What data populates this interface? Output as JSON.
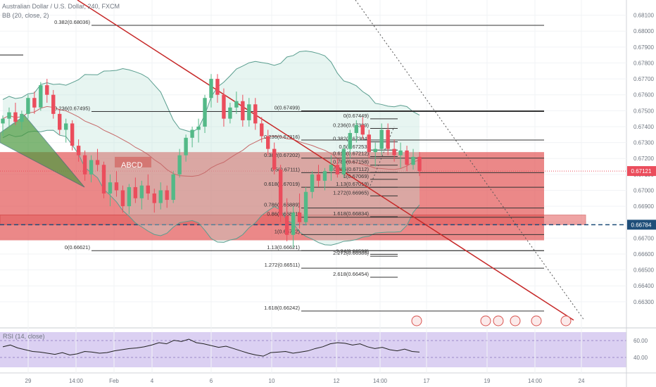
{
  "chart_data": {
    "type": "candlestick",
    "symbol_label": "Australian Dollar / U.S. Dollar, 240, FXCM",
    "indicator_label": "BB (20, close, 2)",
    "rsi_label": "RSI (14, close)",
    "ylim": [
      0.6618,
      0.6816
    ],
    "price_ticks": [
      "0.68100",
      "0.68000",
      "0.67900",
      "0.67800",
      "0.67700",
      "0.67600",
      "0.67500",
      "0.67400",
      "0.67300",
      "0.67200",
      "0.67100",
      "0.67000",
      "0.66900",
      "0.66800",
      "0.66700",
      "0.66600",
      "0.66500",
      "0.66400",
      "0.66300"
    ],
    "current_price": "0.67121",
    "marked_price": "0.66784",
    "rsi_ticks": [
      "60.00",
      "40.00"
    ],
    "time_labels": [
      "29",
      "14:00",
      "Feb",
      "4",
      "6",
      "10",
      "12",
      "14:00",
      "17",
      "19",
      "14:00",
      "24"
    ],
    "pattern_label": "ABCD",
    "fib_left": [
      {
        "label": "0.382(0.68036)",
        "price": 0.68036
      },
      {
        "label": "0.236(0.67495)",
        "price": 0.67495
      },
      {
        "label": "0(0.66621)",
        "price": 0.66621
      }
    ],
    "fib_mid": [
      {
        "label": "0(0.67499)",
        "price": 0.67499
      },
      {
        "label": "0.236(0.67316)",
        "price": 0.67316
      },
      {
        "label": "0.382(0.67202)",
        "price": 0.67202
      },
      {
        "label": "0.5(0.67111)",
        "price": 0.67111
      },
      {
        "label": "0.618(0.67019)",
        "price": 0.67019
      },
      {
        "label": "0.786(0.66889)",
        "price": 0.66889
      },
      {
        "label": "0.86(0.66831)",
        "price": 0.66831
      },
      {
        "label": "1(0.66722)",
        "price": 0.66722
      },
      {
        "label": "1.13(0.66621)",
        "price": 0.66621
      },
      {
        "label": "1.272(0.66511)",
        "price": 0.66511
      },
      {
        "label": "1.618(0.66242)",
        "price": 0.66242
      }
    ],
    "fib_right": [
      {
        "label": "0(0.67449)",
        "price": 0.67449
      },
      {
        "label": "0.236(0.67389)",
        "price": 0.67389
      },
      {
        "label": "0.382(0.67304)",
        "price": 0.67304
      },
      {
        "label": "0.5(0.67253)",
        "price": 0.67253
      },
      {
        "label": "0.618(0.67212)",
        "price": 0.67212
      },
      {
        "label": "0.786(0.67158)",
        "price": 0.67158
      },
      {
        "label": "0.886(0.67112)",
        "price": 0.67112
      },
      {
        "label": "1(0.67069)",
        "price": 0.67069
      },
      {
        "label": "1.13(0.67019)",
        "price": 0.67019
      },
      {
        "label": "1.272(0.66965)",
        "price": 0.66965
      },
      {
        "label": "1.618(0.66834)",
        "price": 0.66834
      },
      {
        "label": "2.24(0.66598)",
        "price": 0.66598
      },
      {
        "label": "2.272(0.66586)",
        "price": 0.66586
      },
      {
        "label": "2.618(0.66454)",
        "price": 0.66454
      }
    ],
    "candles": [
      [
        0.6742,
        0.6747,
        0.6734,
        0.6745
      ],
      [
        0.6745,
        0.6752,
        0.674,
        0.6749
      ],
      [
        0.6749,
        0.6755,
        0.6741,
        0.6743
      ],
      [
        0.6743,
        0.675,
        0.6738,
        0.6748
      ],
      [
        0.6748,
        0.676,
        0.6745,
        0.6758
      ],
      [
        0.6758,
        0.6762,
        0.6748,
        0.6752
      ],
      [
        0.6752,
        0.6768,
        0.675,
        0.6766
      ],
      [
        0.6766,
        0.677,
        0.6755,
        0.676
      ],
      [
        0.676,
        0.6763,
        0.6745,
        0.6748
      ],
      [
        0.6748,
        0.6751,
        0.6735,
        0.6738
      ],
      [
        0.6738,
        0.6745,
        0.673,
        0.6742
      ],
      [
        0.6742,
        0.6744,
        0.6725,
        0.6728
      ],
      [
        0.6728,
        0.6732,
        0.6718,
        0.6722
      ],
      [
        0.6722,
        0.6725,
        0.6706,
        0.671
      ],
      [
        0.671,
        0.6722,
        0.6705,
        0.6719
      ],
      [
        0.6719,
        0.6726,
        0.6712,
        0.6716
      ],
      [
        0.6716,
        0.6718,
        0.6695,
        0.6698
      ],
      [
        0.6698,
        0.671,
        0.669,
        0.6705
      ],
      [
        0.6705,
        0.6712,
        0.6696,
        0.67
      ],
      [
        0.67,
        0.6703,
        0.6686,
        0.669
      ],
      [
        0.669,
        0.6704,
        0.6685,
        0.6702
      ],
      [
        0.6702,
        0.6708,
        0.6692,
        0.6695
      ],
      [
        0.6695,
        0.6706,
        0.6688,
        0.6703
      ],
      [
        0.6703,
        0.671,
        0.6694,
        0.6698
      ],
      [
        0.6698,
        0.6701,
        0.6686,
        0.6692
      ],
      [
        0.6692,
        0.6705,
        0.6688,
        0.67
      ],
      [
        0.67,
        0.6703,
        0.6689,
        0.6694
      ],
      [
        0.6694,
        0.6712,
        0.6692,
        0.671
      ],
      [
        0.671,
        0.6726,
        0.6708,
        0.6722
      ],
      [
        0.6722,
        0.6735,
        0.6718,
        0.6733
      ],
      [
        0.6733,
        0.674,
        0.6727,
        0.6738
      ],
      [
        0.6738,
        0.6745,
        0.673,
        0.674
      ],
      [
        0.674,
        0.676,
        0.6736,
        0.6758
      ],
      [
        0.6758,
        0.6773,
        0.6752,
        0.677
      ],
      [
        0.677,
        0.6773,
        0.6755,
        0.676
      ],
      [
        0.676,
        0.6764,
        0.674,
        0.6745
      ],
      [
        0.6745,
        0.6755,
        0.6742,
        0.6752
      ],
      [
        0.6752,
        0.6762,
        0.6748,
        0.6756
      ],
      [
        0.6756,
        0.676,
        0.674,
        0.6744
      ],
      [
        0.6744,
        0.6758,
        0.674,
        0.6754
      ],
      [
        0.6754,
        0.6758,
        0.6738,
        0.6742
      ],
      [
        0.6742,
        0.6746,
        0.673,
        0.6734
      ],
      [
        0.6734,
        0.6738,
        0.6722,
        0.6726
      ],
      [
        0.6726,
        0.673,
        0.671,
        0.6713
      ],
      [
        0.6713,
        0.6716,
        0.668,
        0.6684
      ],
      [
        0.6684,
        0.6695,
        0.6668,
        0.6672
      ],
      [
        0.6672,
        0.669,
        0.6664,
        0.6686
      ],
      [
        0.6686,
        0.6698,
        0.6676,
        0.668
      ],
      [
        0.668,
        0.6702,
        0.6678,
        0.6699
      ],
      [
        0.6699,
        0.6712,
        0.6695,
        0.671
      ],
      [
        0.671,
        0.6716,
        0.6702,
        0.6706
      ],
      [
        0.6706,
        0.6714,
        0.67,
        0.6712
      ],
      [
        0.6712,
        0.6722,
        0.6706,
        0.6716
      ],
      [
        0.6716,
        0.672,
        0.6708,
        0.671
      ],
      [
        0.671,
        0.6728,
        0.6708,
        0.6726
      ],
      [
        0.6726,
        0.6738,
        0.672,
        0.6736
      ],
      [
        0.6736,
        0.6744,
        0.673,
        0.6741
      ],
      [
        0.6741,
        0.6746,
        0.6732,
        0.6735
      ],
      [
        0.6735,
        0.6738,
        0.672,
        0.6724
      ],
      [
        0.6724,
        0.673,
        0.6715,
        0.6726
      ],
      [
        0.6726,
        0.6742,
        0.6722,
        0.6738
      ],
      [
        0.6738,
        0.6742,
        0.6722,
        0.6726
      ],
      [
        0.6726,
        0.6732,
        0.6718,
        0.6722
      ],
      [
        0.6722,
        0.673,
        0.6714,
        0.6725
      ],
      [
        0.6725,
        0.6728,
        0.6712,
        0.6716
      ],
      [
        0.6716,
        0.6726,
        0.6713,
        0.6721
      ],
      [
        0.6721,
        0.6724,
        0.6709,
        0.6712
      ]
    ],
    "rsi": [
      55,
      58,
      53,
      50,
      47,
      46,
      44,
      42,
      45,
      41,
      43,
      47,
      46,
      44,
      45,
      48,
      50,
      52,
      53,
      55,
      58,
      62,
      60,
      66,
      64,
      68,
      62,
      60,
      57,
      54,
      56,
      52,
      48,
      44,
      41,
      39,
      45,
      46,
      47,
      44,
      46,
      48,
      52,
      55,
      60,
      62,
      61,
      58,
      60,
      55,
      52,
      54,
      50,
      48,
      51,
      47,
      46
    ]
  },
  "icons": [
    "calendar-event-icon",
    "dividend-icon",
    "earnings-icon",
    "calendar-event-icon",
    "earnings-icon",
    "split-icon"
  ],
  "colors": {
    "bull": "#53b987",
    "bear": "#eb4d5c",
    "zone": "#e35a5a",
    "trend": "#c62828",
    "bb": "#5a9e8f",
    "rsi_bg": "#d5c8f0",
    "rsi_line": "#222222",
    "current_badge": "#eb4d5c",
    "marked_badge": "#1e4e79"
  }
}
